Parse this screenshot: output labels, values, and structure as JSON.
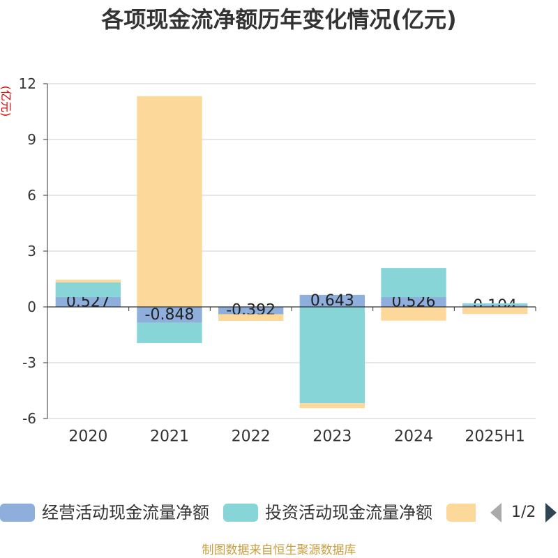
{
  "chart_data": {
    "type": "bar",
    "stacked": true,
    "title": "各项现金流净额历年变化情况(亿元)",
    "xlabel": "",
    "ylabel": "(亿元)",
    "categories": [
      "2020",
      "2021",
      "2022",
      "2023",
      "2024",
      "2025H1"
    ],
    "ylim": [
      -6,
      12
    ],
    "yticks": [
      12,
      9,
      6,
      3,
      0,
      -3,
      -6
    ],
    "grid": true,
    "legend": "bottom",
    "series": [
      {
        "name": "经营活动现金流量净额",
        "color": "#8eaedb",
        "values": [
          0.527,
          -0.848,
          -0.392,
          0.643,
          0.526,
          0.104
        ],
        "data_labels": true
      },
      {
        "name": "投资活动现金流量净额",
        "color": "#88d5d8",
        "values": [
          0.79,
          -1.1,
          0,
          -5.18,
          1.57,
          0.09
        ]
      },
      {
        "color": "#fdd89b",
        "values": [
          0.15,
          11.33,
          -0.36,
          -0.26,
          -0.74,
          -0.38
        ]
      }
    ]
  },
  "legend": {
    "page": "1/2"
  },
  "source": "制图数据来自恒生聚源数据库",
  "colors": {
    "title": "#333333",
    "axis_name": "#dd0000",
    "source": "#c9a041",
    "arrow_active": "#2f4554",
    "arrow_disabled": "#aaaaaa"
  }
}
